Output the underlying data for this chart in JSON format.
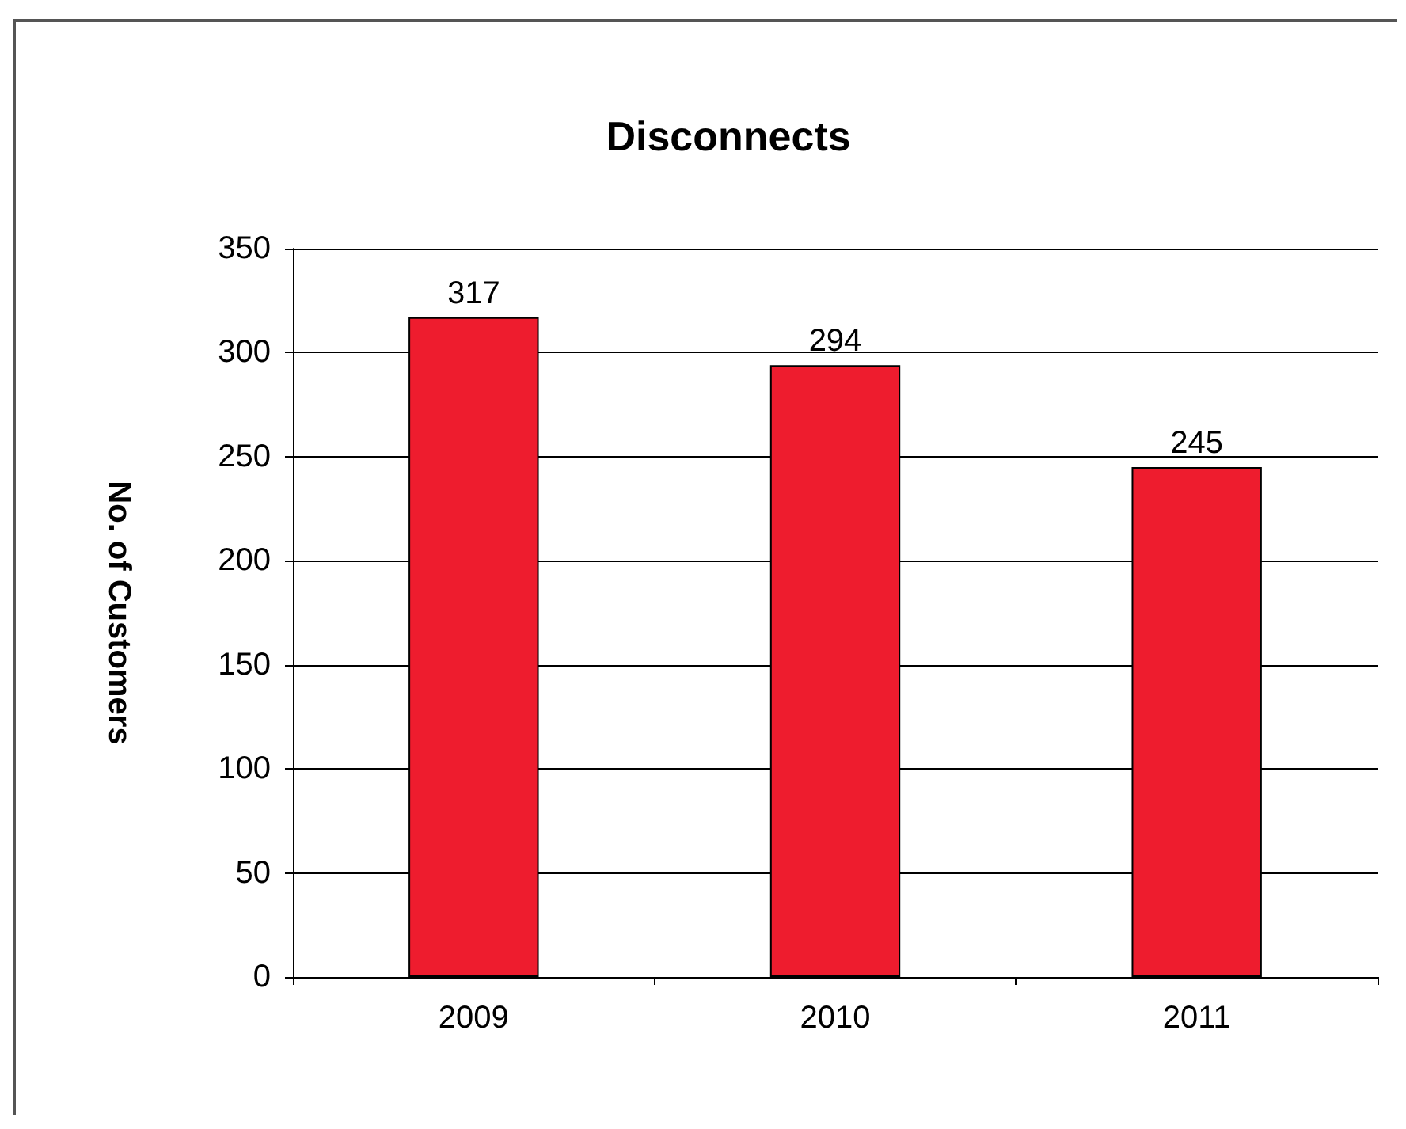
{
  "chart_data": {
    "type": "bar",
    "title": "Disconnects",
    "ylabel": "No. of Customers",
    "categories": [
      "2009",
      "2010",
      "2011"
    ],
    "values": [
      317,
      294,
      245
    ],
    "color": "#ee1c2e",
    "ylim": [
      0,
      350
    ],
    "yticks": [
      0,
      50,
      100,
      150,
      200,
      250,
      300,
      350
    ],
    "grid": "y",
    "data_labels": true
  }
}
